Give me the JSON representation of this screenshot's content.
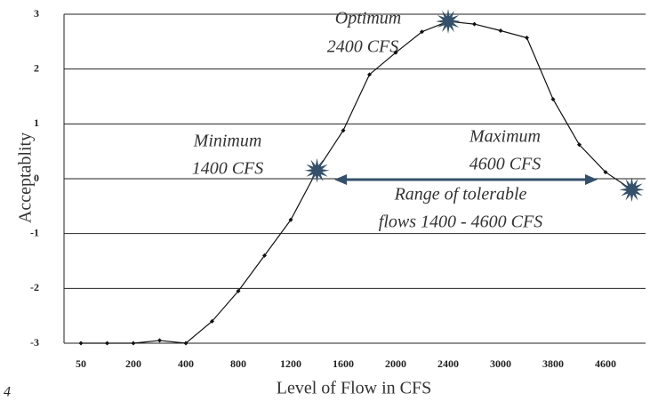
{
  "chart_data": {
    "type": "line",
    "y_label": "Acceptablity",
    "x_label": "Level of Flow in CFS",
    "categories": [
      "50",
      null,
      "200",
      null,
      "400",
      null,
      "800",
      null,
      "1200",
      null,
      "1600",
      null,
      "2000",
      null,
      "2400",
      null,
      "3000",
      null,
      "3800",
      null,
      "4600",
      null
    ],
    "values": [
      -3,
      -3,
      -3,
      -2.95,
      -3,
      -2.6,
      -2.05,
      -1.4,
      -0.75,
      0.15,
      0.88,
      1.9,
      2.3,
      2.68,
      2.87,
      2.82,
      2.7,
      2.57,
      1.45,
      0.62,
      0.12,
      -0.2
    ],
    "color": "#111111",
    "star_color": "#34506a",
    "ylim": [
      -3,
      3
    ],
    "yticks": [
      -3,
      -2,
      -1,
      0,
      1,
      2,
      3
    ],
    "grid": true,
    "annotations": [
      [
        "Optimum",
        "2400 CFS"
      ],
      [
        "Minimum",
        "1400 CFS"
      ],
      [
        "Maximum",
        "4600 CFS"
      ],
      [
        "Range of tolerable",
        "flows 1400 - 4600 CFS"
      ]
    ],
    "corner_text": "4"
  }
}
